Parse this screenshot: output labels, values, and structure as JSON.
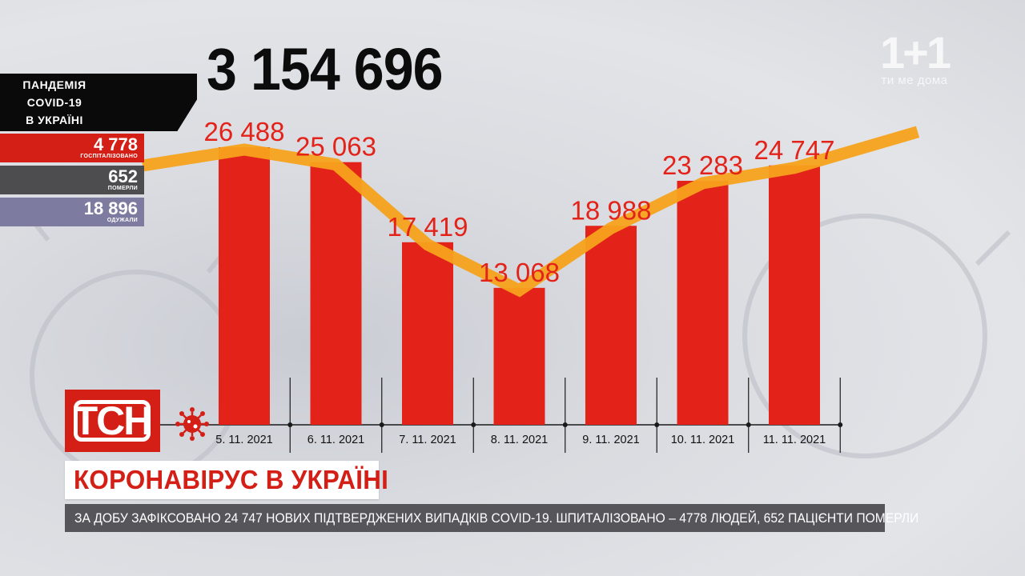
{
  "total_cases": "3 154 696",
  "side_panel": {
    "title_lines": [
      "ПАНДЕМІЯ",
      "COVID-19",
      "В УКРАЇНІ"
    ],
    "stats": [
      {
        "value": "4 778",
        "label": "ГОСПІТАЛІЗОВАНО",
        "color": "#d41f17"
      },
      {
        "value": "652",
        "label": "ПОМЕРЛИ",
        "color": "#4d4d4f"
      },
      {
        "value": "18 896",
        "label": "ОДУЖАЛИ",
        "color": "#7e7ba1"
      }
    ]
  },
  "chart_data": {
    "type": "bar",
    "categories": [
      "5. 11. 2021",
      "6. 11. 2021",
      "7. 11. 2021",
      "8. 11. 2021",
      "9. 11. 2021",
      "10. 11. 2021",
      "11. 11. 2021"
    ],
    "values": [
      26488,
      25063,
      17419,
      13068,
      18988,
      23283,
      24747
    ],
    "value_labels": [
      "26 488",
      "25 063",
      "17 419",
      "13 068",
      "18 988",
      "23 283",
      "24 747"
    ],
    "trend_line": {
      "values": [
        26488,
        25063,
        17419,
        13068,
        18988,
        23283,
        24747
      ],
      "color": "#f7a21b"
    },
    "bar_color": "#e3231a",
    "title": "",
    "xlabel": "",
    "ylabel": "",
    "grid": false
  },
  "program_logo": {
    "text": "ТСН",
    "color": "#d41f17"
  },
  "headline": "КОРОНАВІРУС В УКРАЇНІ",
  "ticker": "ЗА ДОБУ ЗАФІКСОВАНО 24 747 НОВИХ ПІДТВЕРДЖЕНИХ ВИПАДКІВ COVID-19. ШПИТАЛІЗОВАНО – 4778 ЛЮДЕЙ, 652 ПАЦІЄНТИ ПОМЕРЛИ",
  "channel_logo": {
    "mark": "1+1",
    "tagline": "ти ме дома"
  }
}
